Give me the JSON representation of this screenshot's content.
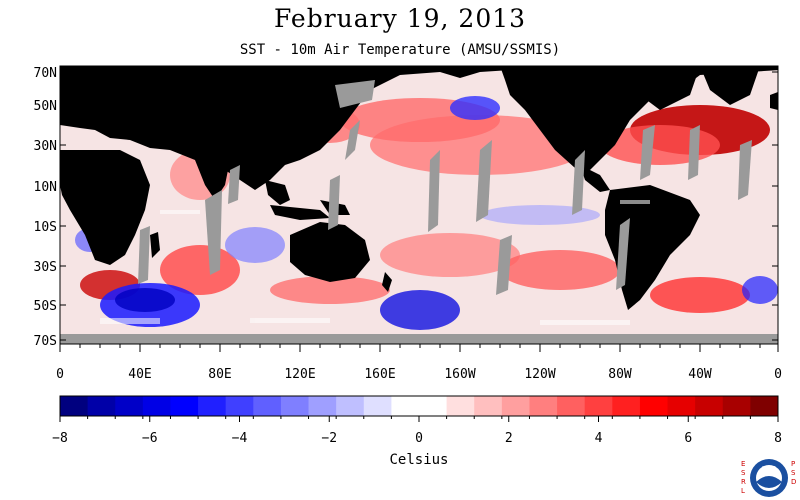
{
  "title": "February 19, 2013",
  "subtitle": "SST - 10m Air Temperature (AMSU/SSMIS)",
  "lat_labels": [
    "70N",
    "50N",
    "30N",
    "10N",
    "10S",
    "30S",
    "50S",
    "70S"
  ],
  "lon_labels": [
    "0",
    "40E",
    "80E",
    "120E",
    "160E",
    "160W",
    "120W",
    "80W",
    "40W",
    "0"
  ],
  "colorbar": {
    "tick_labels": [
      "−8",
      "−6",
      "−4",
      "−2",
      "0",
      "2",
      "4",
      "6",
      "8"
    ],
    "units": "Celsius",
    "colors": [
      "#00007f",
      "#0000a8",
      "#0000c8",
      "#0000e6",
      "#0000ff",
      "#2020ff",
      "#4040ff",
      "#6060ff",
      "#7f7fff",
      "#9f9fff",
      "#bfbfff",
      "#dfdfff",
      "#ffffff",
      "#ffffff",
      "#ffdfdf",
      "#ffbfbf",
      "#ff9f9f",
      "#ff7f7f",
      "#ff6060",
      "#ff4040",
      "#ff2020",
      "#ff0000",
      "#e60000",
      "#c80000",
      "#a80000",
      "#7f0000"
    ]
  },
  "logo": {
    "left_text": "ESRL",
    "right_text": "PSD",
    "center_text": "NOAA"
  },
  "colors": {
    "land": "#000000",
    "missing": "#9a9a9a",
    "ocean_base": "#f7e8e8"
  }
}
